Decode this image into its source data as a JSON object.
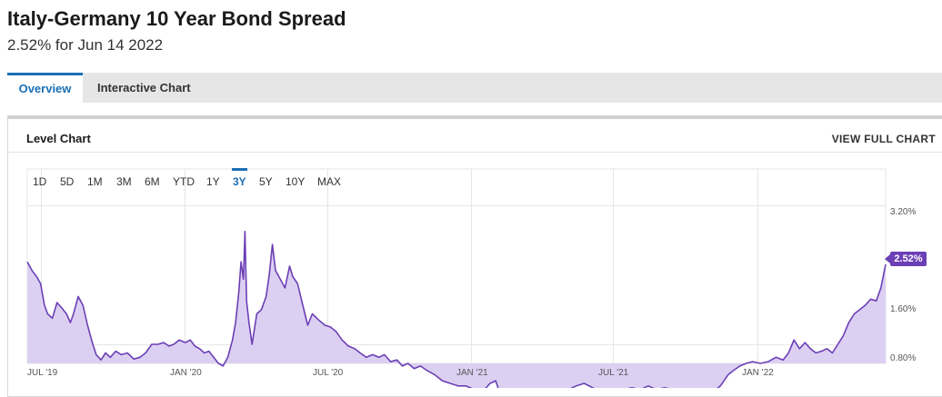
{
  "header": {
    "title": "Italy-Germany 10 Year Bond Spread",
    "subtitle": "2.52% for Jun 14 2022"
  },
  "tabs": [
    {
      "label": "Overview",
      "active": true
    },
    {
      "label": "Interactive Chart",
      "active": false
    }
  ],
  "card": {
    "title": "Level Chart",
    "link": "VIEW FULL CHART"
  },
  "ranges": [
    "1D",
    "5D",
    "1M",
    "3M",
    "6M",
    "YTD",
    "1Y",
    "3Y",
    "5Y",
    "10Y",
    "MAX"
  ],
  "active_range": "3Y",
  "chart_data": {
    "type": "area",
    "series": [
      {
        "points": [
          [
            "2019-06-14",
            2.55
          ],
          [
            "2019-06-20",
            2.45
          ],
          [
            "2019-06-26",
            2.38
          ],
          [
            "2019-07-01",
            2.3
          ],
          [
            "2019-07-06",
            2.05
          ],
          [
            "2019-07-10",
            1.95
          ],
          [
            "2019-07-16",
            1.9
          ],
          [
            "2019-07-22",
            2.08
          ],
          [
            "2019-07-28",
            2.02
          ],
          [
            "2019-08-03",
            1.95
          ],
          [
            "2019-08-08",
            1.85
          ],
          [
            "2019-08-12",
            1.95
          ],
          [
            "2019-08-18",
            2.15
          ],
          [
            "2019-08-24",
            2.05
          ],
          [
            "2019-08-30",
            1.82
          ],
          [
            "2019-09-05",
            1.62
          ],
          [
            "2019-09-10",
            1.48
          ],
          [
            "2019-09-16",
            1.42
          ],
          [
            "2019-09-22",
            1.5
          ],
          [
            "2019-09-28",
            1.45
          ],
          [
            "2019-10-05",
            1.52
          ],
          [
            "2019-10-12",
            1.48
          ],
          [
            "2019-10-20",
            1.5
          ],
          [
            "2019-10-28",
            1.43
          ],
          [
            "2019-11-05",
            1.45
          ],
          [
            "2019-11-12",
            1.5
          ],
          [
            "2019-11-20",
            1.6
          ],
          [
            "2019-11-28",
            1.6
          ],
          [
            "2019-12-05",
            1.62
          ],
          [
            "2019-12-12",
            1.58
          ],
          [
            "2019-12-18",
            1.6
          ],
          [
            "2019-12-25",
            1.65
          ],
          [
            "2020-01-02",
            1.62
          ],
          [
            "2020-01-08",
            1.65
          ],
          [
            "2020-01-14",
            1.58
          ],
          [
            "2020-01-20",
            1.55
          ],
          [
            "2020-01-26",
            1.5
          ],
          [
            "2020-02-01",
            1.52
          ],
          [
            "2020-02-07",
            1.45
          ],
          [
            "2020-02-13",
            1.38
          ],
          [
            "2020-02-19",
            1.35
          ],
          [
            "2020-02-25",
            1.45
          ],
          [
            "2020-03-02",
            1.65
          ],
          [
            "2020-03-06",
            1.85
          ],
          [
            "2020-03-10",
            2.2
          ],
          [
            "2020-03-13",
            2.55
          ],
          [
            "2020-03-16",
            2.35
          ],
          [
            "2020-03-18",
            2.9
          ],
          [
            "2020-03-20",
            2.1
          ],
          [
            "2020-03-23",
            1.85
          ],
          [
            "2020-03-27",
            1.6
          ],
          [
            "2020-04-02",
            1.95
          ],
          [
            "2020-04-08",
            2.0
          ],
          [
            "2020-04-14",
            2.15
          ],
          [
            "2020-04-18",
            2.4
          ],
          [
            "2020-04-22",
            2.75
          ],
          [
            "2020-04-26",
            2.45
          ],
          [
            "2020-05-02",
            2.35
          ],
          [
            "2020-05-08",
            2.25
          ],
          [
            "2020-05-14",
            2.5
          ],
          [
            "2020-05-18",
            2.38
          ],
          [
            "2020-05-24",
            2.3
          ],
          [
            "2020-05-30",
            2.08
          ],
          [
            "2020-06-06",
            1.82
          ],
          [
            "2020-06-12",
            1.95
          ],
          [
            "2020-06-20",
            1.88
          ],
          [
            "2020-06-28",
            1.82
          ],
          [
            "2020-07-05",
            1.8
          ],
          [
            "2020-07-12",
            1.75
          ],
          [
            "2020-07-20",
            1.65
          ],
          [
            "2020-07-28",
            1.58
          ],
          [
            "2020-08-05",
            1.55
          ],
          [
            "2020-08-12",
            1.5
          ],
          [
            "2020-08-20",
            1.45
          ],
          [
            "2020-08-28",
            1.48
          ],
          [
            "2020-09-05",
            1.45
          ],
          [
            "2020-09-12",
            1.48
          ],
          [
            "2020-09-20",
            1.4
          ],
          [
            "2020-09-28",
            1.42
          ],
          [
            "2020-10-05",
            1.35
          ],
          [
            "2020-10-12",
            1.38
          ],
          [
            "2020-10-20",
            1.32
          ],
          [
            "2020-10-28",
            1.35
          ],
          [
            "2020-11-05",
            1.3
          ],
          [
            "2020-11-15",
            1.25
          ],
          [
            "2020-11-25",
            1.18
          ],
          [
            "2020-12-05",
            1.15
          ],
          [
            "2020-12-15",
            1.12
          ],
          [
            "2020-12-25",
            1.12
          ],
          [
            "2021-01-05",
            1.08
          ],
          [
            "2021-01-15",
            1.05
          ],
          [
            "2021-01-25",
            1.15
          ],
          [
            "2021-02-01",
            1.18
          ],
          [
            "2021-02-06",
            1.05
          ],
          [
            "2021-02-12",
            0.95
          ],
          [
            "2021-02-18",
            0.9
          ],
          [
            "2021-02-24",
            0.92
          ],
          [
            "2021-03-02",
            1.0
          ],
          [
            "2021-03-08",
            0.96
          ],
          [
            "2021-03-16",
            0.98
          ],
          [
            "2021-03-25",
            0.95
          ],
          [
            "2021-04-05",
            0.98
          ],
          [
            "2021-04-15",
            1.02
          ],
          [
            "2021-04-25",
            1.05
          ],
          [
            "2021-05-05",
            1.08
          ],
          [
            "2021-05-15",
            1.12
          ],
          [
            "2021-05-25",
            1.15
          ],
          [
            "2021-06-05",
            1.1
          ],
          [
            "2021-06-15",
            1.05
          ],
          [
            "2021-06-25",
            1.08
          ],
          [
            "2021-07-05",
            1.05
          ],
          [
            "2021-07-15",
            1.08
          ],
          [
            "2021-07-25",
            1.1
          ],
          [
            "2021-08-05",
            1.08
          ],
          [
            "2021-08-15",
            1.12
          ],
          [
            "2021-08-25",
            1.08
          ],
          [
            "2021-09-05",
            1.1
          ],
          [
            "2021-09-15",
            1.08
          ],
          [
            "2021-09-25",
            1.05
          ],
          [
            "2021-10-05",
            1.02
          ],
          [
            "2021-10-15",
            1.05
          ],
          [
            "2021-10-25",
            1.03
          ],
          [
            "2021-11-05",
            1.05
          ],
          [
            "2021-11-15",
            1.12
          ],
          [
            "2021-11-25",
            1.25
          ],
          [
            "2021-12-02",
            1.3
          ],
          [
            "2021-12-10",
            1.35
          ],
          [
            "2021-12-18",
            1.38
          ],
          [
            "2021-12-26",
            1.4
          ],
          [
            "2022-01-05",
            1.38
          ],
          [
            "2022-01-15",
            1.4
          ],
          [
            "2022-01-25",
            1.45
          ],
          [
            "2022-02-03",
            1.42
          ],
          [
            "2022-02-10",
            1.5
          ],
          [
            "2022-02-17",
            1.65
          ],
          [
            "2022-02-24",
            1.55
          ],
          [
            "2022-03-03",
            1.62
          ],
          [
            "2022-03-10",
            1.55
          ],
          [
            "2022-03-17",
            1.5
          ],
          [
            "2022-03-24",
            1.52
          ],
          [
            "2022-03-31",
            1.55
          ],
          [
            "2022-04-07",
            1.5
          ],
          [
            "2022-04-14",
            1.6
          ],
          [
            "2022-04-21",
            1.7
          ],
          [
            "2022-04-28",
            1.85
          ],
          [
            "2022-05-05",
            1.95
          ],
          [
            "2022-05-12",
            2.0
          ],
          [
            "2022-05-19",
            2.05
          ],
          [
            "2022-05-26",
            2.12
          ],
          [
            "2022-06-02",
            2.1
          ],
          [
            "2022-06-08",
            2.25
          ],
          [
            "2022-06-14",
            2.52
          ]
        ]
      }
    ],
    "x_tick_labels": [
      "JUL '19",
      "JAN '20",
      "JUL '20",
      "JAN '21",
      "JUL '21",
      "JAN '22"
    ],
    "x_ticks": [
      "2019-07-01",
      "2020-01-01",
      "2020-07-01",
      "2021-01-01",
      "2021-07-01",
      "2022-01-01"
    ],
    "x_range": [
      "2019-06-14",
      "2022-06-14"
    ],
    "y_tick_labels": [
      "3.20%",
      "1.60%",
      "0.80%"
    ],
    "y_ticks": [
      3.2,
      1.6,
      0.8
    ],
    "y_range": [
      0.8,
      3.2
    ],
    "last_value_label": "2.52%",
    "line_color": "#6b3fb5",
    "fill_color": "#dcd0f2",
    "grid": true
  }
}
